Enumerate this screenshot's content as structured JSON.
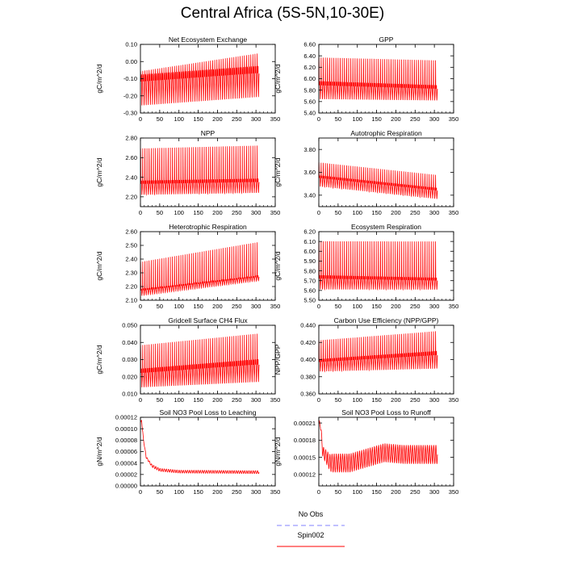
{
  "title": "Central Africa (5S-5N,10-30E)",
  "legend": [
    {
      "label": "No Obs",
      "color": "#8080ff",
      "dash": true
    },
    {
      "label": "Spin002",
      "color": "#ff0000",
      "dash": false
    }
  ],
  "line_color": "#ff0000",
  "chart_data": [
    {
      "type": "line",
      "title": "Net Ecosystem Exchange",
      "ylabel": "gC/m^2/d",
      "xlim": [
        0,
        350
      ],
      "xticks": [
        0,
        50,
        100,
        150,
        200,
        250,
        300,
        350
      ],
      "ylim": [
        -0.3,
        0.1
      ],
      "yticks": [
        0.1,
        0.0,
        -0.1,
        -0.2,
        -0.3
      ],
      "yticklabels": [
        "0.10",
        "0.00",
        "-0.10",
        "-0.20",
        "-0.30"
      ],
      "x_end": 308,
      "period": 5.5,
      "upper": {
        "start": -0.05,
        "end": 0.06
      },
      "lower": {
        "start": -0.27,
        "end": -0.22
      },
      "mid": {
        "start": -0.12,
        "end": -0.07
      }
    },
    {
      "type": "line",
      "title": "GPP",
      "ylabel": "gC/m^2/d",
      "xlim": [
        0,
        350
      ],
      "xticks": [
        0,
        50,
        100,
        150,
        200,
        250,
        300,
        350
      ],
      "ylim": [
        5.4,
        6.6
      ],
      "yticks": [
        6.6,
        6.4,
        6.2,
        6.0,
        5.8,
        5.6,
        5.4
      ],
      "yticklabels": [
        "6.60",
        "6.40",
        "6.20",
        "6.00",
        "5.80",
        "5.60",
        "5.40"
      ],
      "x_end": 308,
      "period": 5.5,
      "upper": {
        "start": 6.42,
        "end": 6.37
      },
      "lower": {
        "start": 5.62,
        "end": 5.6
      },
      "mid": {
        "start": 5.88,
        "end": 5.82
      }
    },
    {
      "type": "line",
      "title": "NPP",
      "ylabel": "gC/m^2/d",
      "xlim": [
        0,
        350
      ],
      "xticks": [
        0,
        50,
        100,
        150,
        200,
        250,
        300,
        350
      ],
      "ylim": [
        2.1,
        2.8
      ],
      "yticks": [
        2.8,
        2.6,
        2.4,
        2.2
      ],
      "yticklabels": [
        "2.80",
        "2.60",
        "2.40",
        "2.20"
      ],
      "x_end": 308,
      "period": 5.5,
      "upper": {
        "start": 2.73,
        "end": 2.76
      },
      "lower": {
        "start": 2.21,
        "end": 2.23
      },
      "mid": {
        "start": 2.33,
        "end": 2.35
      }
    },
    {
      "type": "line",
      "title": "Autotrophic Respiration",
      "ylabel": "gC/m^2/d",
      "xlim": [
        0,
        350
      ],
      "xticks": [
        0,
        50,
        100,
        150,
        200,
        250,
        300,
        350
      ],
      "ylim": [
        3.3,
        3.9
      ],
      "yticks": [
        3.8,
        3.6,
        3.4
      ],
      "yticklabels": [
        "3.80",
        "3.60",
        "3.40"
      ],
      "x_end": 308,
      "period": 5.5,
      "upper": {
        "start": 3.7,
        "end": 3.59
      },
      "lower": {
        "start": 3.47,
        "end": 3.36
      },
      "mid": {
        "start": 3.55,
        "end": 3.44
      }
    },
    {
      "type": "line",
      "title": "Heterotrophic Respiration",
      "ylabel": "gC/m^2/d",
      "xlim": [
        0,
        350
      ],
      "xticks": [
        0,
        50,
        100,
        150,
        200,
        250,
        300,
        350
      ],
      "ylim": [
        2.1,
        2.6
      ],
      "yticks": [
        2.6,
        2.5,
        2.4,
        2.3,
        2.2,
        2.1
      ],
      "yticklabels": [
        "2.60",
        "2.50",
        "2.40",
        "2.30",
        "2.20",
        "2.10"
      ],
      "x_end": 308,
      "period": 5.5,
      "upper": {
        "start": 2.4,
        "end": 2.55
      },
      "lower": {
        "start": 2.13,
        "end": 2.24
      },
      "mid": {
        "start": 2.17,
        "end": 2.27
      }
    },
    {
      "type": "line",
      "title": "Ecosystem Respiration",
      "ylabel": "gC/m^2/d",
      "xlim": [
        0,
        350
      ],
      "xticks": [
        0,
        50,
        100,
        150,
        200,
        250,
        300,
        350
      ],
      "ylim": [
        5.5,
        6.2
      ],
      "yticks": [
        6.2,
        6.1,
        6.0,
        5.9,
        5.8,
        5.7,
        5.6,
        5.5
      ],
      "yticklabels": [
        "6.20",
        "6.10",
        "6.00",
        "5.90",
        "5.80",
        "5.70",
        "5.60",
        "5.50"
      ],
      "x_end": 308,
      "period": 5.5,
      "upper": {
        "start": 6.14,
        "end": 6.14
      },
      "lower": {
        "start": 5.6,
        "end": 5.6
      },
      "mid": {
        "start": 5.72,
        "end": 5.7
      }
    },
    {
      "type": "line",
      "title": "Gridcell Surface CH4 Flux",
      "ylabel": "gC/m^2/d",
      "xlim": [
        0,
        350
      ],
      "xticks": [
        0,
        50,
        100,
        150,
        200,
        250,
        300,
        350
      ],
      "ylim": [
        0.01,
        0.05
      ],
      "yticks": [
        0.05,
        0.04,
        0.03,
        0.02,
        0.01
      ],
      "yticklabels": [
        "0.050",
        "0.040",
        "0.030",
        "0.020",
        "0.010"
      ],
      "x_end": 308,
      "period": 5.5,
      "upper": {
        "start": 0.04,
        "end": 0.047
      },
      "lower": {
        "start": 0.013,
        "end": 0.016
      },
      "mid": {
        "start": 0.022,
        "end": 0.027
      }
    },
    {
      "type": "line",
      "title": "Carbon Use Efficiency (NPP/GPP)",
      "ylabel": "NPP/GPP",
      "xlim": [
        0,
        350
      ],
      "xticks": [
        0,
        50,
        100,
        150,
        200,
        250,
        300,
        350
      ],
      "ylim": [
        0.36,
        0.44
      ],
      "yticks": [
        0.44,
        0.42,
        0.4,
        0.38,
        0.36
      ],
      "yticklabels": [
        "0.440",
        "0.420",
        "0.400",
        "0.380",
        "0.360"
      ],
      "x_end": 308,
      "period": 5.5,
      "upper": {
        "start": 0.425,
        "end": 0.436
      },
      "lower": {
        "start": 0.385,
        "end": 0.388
      },
      "mid": {
        "start": 0.397,
        "end": 0.405
      }
    },
    {
      "type": "line",
      "title": "Soil NO3 Pool Loss to Leaching",
      "ylabel": "gN/m^2/d",
      "xlim": [
        0,
        350
      ],
      "xticks": [
        0,
        50,
        100,
        150,
        200,
        250,
        300,
        350
      ],
      "ylim": [
        0,
        0.00012
      ],
      "yticks": [
        0.00012,
        0.0001,
        8e-05,
        6e-05,
        4e-05,
        2e-05,
        0
      ],
      "yticklabels": [
        "0.00012",
        "0.00010",
        "0.00008",
        "0.00006",
        "0.00004",
        "0.00002",
        "0.00000"
      ],
      "x_end": 308,
      "period": 5.5,
      "profile": [
        [
          0,
          0.00011
        ],
        [
          3,
          0.000115
        ],
        [
          8,
          8e-05
        ],
        [
          15,
          5e-05
        ],
        [
          30,
          3.5e-05
        ],
        [
          50,
          2.8e-05
        ],
        [
          100,
          2.5e-05
        ],
        [
          308,
          2.4e-05
        ]
      ],
      "amplitude": 2.5e-06
    },
    {
      "type": "line",
      "title": "Soil NO3 Pool Loss to Runoff",
      "ylabel": "gN/m^2/d",
      "xlim": [
        0,
        350
      ],
      "xticks": [
        0,
        50,
        100,
        150,
        200,
        250,
        300,
        350
      ],
      "ylim": [
        0.0001,
        0.00022
      ],
      "yticks": [
        0.00021,
        0.00018,
        0.00015,
        0.00012
      ],
      "yticklabels": [
        "0.00021",
        "0.00018",
        "0.00015",
        "0.00012"
      ],
      "x_end": 308,
      "period": 5.5,
      "profile": [
        [
          0,
          0.000205
        ],
        [
          4,
          0.00021
        ],
        [
          10,
          0.00016
        ],
        [
          30,
          0.00014
        ],
        [
          80,
          0.00014
        ],
        [
          130,
          0.00015
        ],
        [
          170,
          0.000158
        ],
        [
          220,
          0.000155
        ],
        [
          308,
          0.000155
        ]
      ],
      "amplitude": 1.6e-05
    }
  ]
}
